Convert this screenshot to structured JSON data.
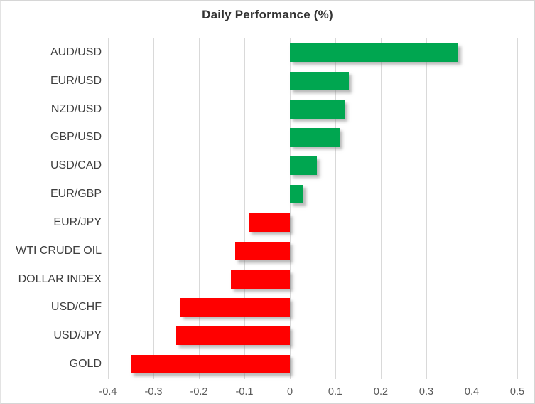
{
  "chart_data": {
    "type": "bar",
    "orientation": "horizontal",
    "title": "Daily Performance (%)",
    "categories": [
      "AUD/USD",
      "EUR/USD",
      "NZD/USD",
      "GBP/USD",
      "USD/CAD",
      "EUR/GBP",
      "EUR/JPY",
      "WTI CRUDE OIL",
      "DOLLAR INDEX",
      "USD/CHF",
      "USD/JPY",
      "GOLD"
    ],
    "values": [
      0.37,
      0.13,
      0.12,
      0.11,
      0.06,
      0.03,
      -0.09,
      -0.12,
      -0.13,
      -0.24,
      -0.25,
      -0.35
    ],
    "xlabel": "",
    "ylabel": "",
    "xlim": [
      -0.4,
      0.5
    ],
    "xticks": [
      -0.4,
      -0.3,
      -0.2,
      -0.1,
      0,
      0.1,
      0.2,
      0.3,
      0.4,
      0.5
    ],
    "xtick_labels": [
      "-0.4",
      "-0.3",
      "-0.2",
      "-0.1",
      "0",
      "0.1",
      "0.2",
      "0.3",
      "0.4",
      "0.5"
    ],
    "grid": true,
    "legend": false,
    "colors": {
      "positive_bar": "#00A650",
      "negative_bar": "#FF0000",
      "gridline": "#D9D9D9",
      "title_text": "#333333",
      "category_text": "#3F3F3F",
      "tick_text": "#595959"
    }
  }
}
